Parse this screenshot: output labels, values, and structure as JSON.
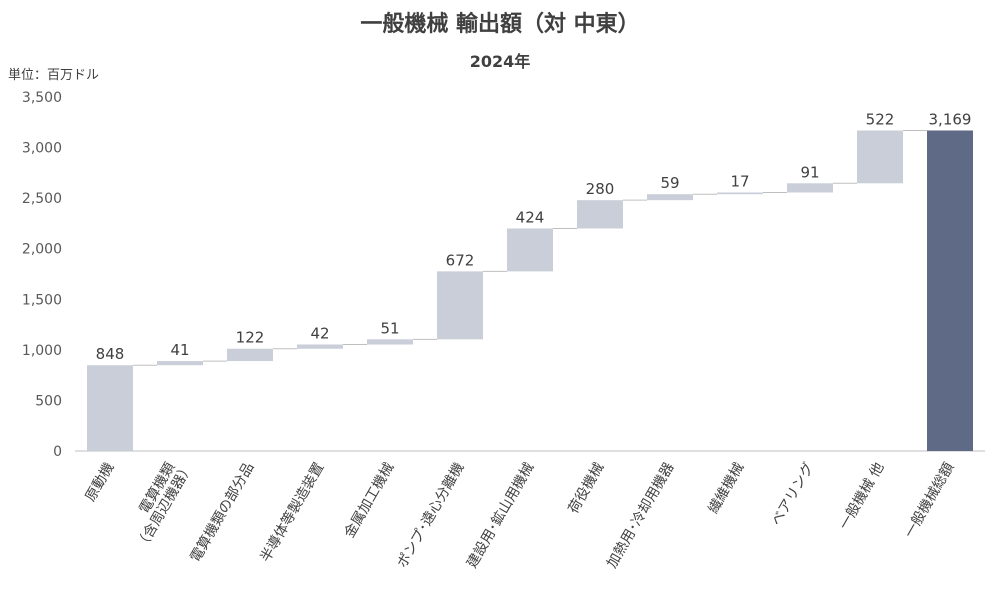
{
  "title": "一般機械 輸出額（対 中東）",
  "subtitle": "2024年",
  "unit_label": "単位：百万ドル",
  "colors": {
    "increment": "#c9ced9",
    "total": "#5f6b86",
    "connector": "#bfbfbf",
    "axis": "#bfbfbf"
  },
  "chart_data": {
    "type": "bar",
    "subtype": "waterfall",
    "title": "一般機械 輸出額（対 中東）",
    "subtitle": "2024年",
    "ylabel": "単位：百万ドル",
    "ylim": [
      0,
      3500
    ],
    "yticks": [
      0,
      500,
      1000,
      1500,
      2000,
      2500,
      3000,
      3500
    ],
    "ytick_labels": [
      "0",
      "500",
      "1,000",
      "1,500",
      "2,000",
      "2,500",
      "3,000",
      "3,500"
    ],
    "grid": false,
    "categories": [
      "原動機",
      "電算機類\n（含周辺機器）",
      "電算機類の部分品",
      "半導体等製造装置",
      "金属加工機械",
      "ポンプ･遠心分離機",
      "建設用･鉱山用機械",
      "荷役機械",
      "加熱用･冷却用機器",
      "繊維機械",
      "ベアリング",
      "一般機械 他",
      "一般機械総額"
    ],
    "values": [
      848,
      41,
      122,
      42,
      51,
      672,
      424,
      280,
      59,
      17,
      91,
      522,
      3169
    ],
    "value_labels": [
      "848",
      "41",
      "122",
      "42",
      "51",
      "672",
      "424",
      "280",
      "59",
      "17",
      "91",
      "522",
      "3,169"
    ],
    "is_total": [
      false,
      false,
      false,
      false,
      false,
      false,
      false,
      false,
      false,
      false,
      false,
      false,
      true
    ]
  }
}
